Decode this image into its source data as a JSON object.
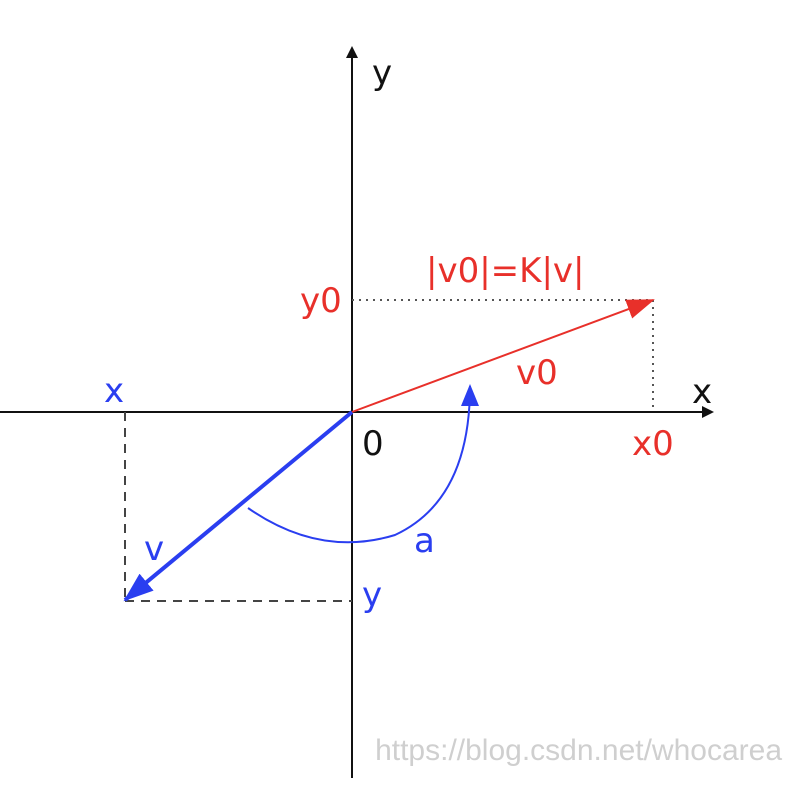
{
  "diagram": {
    "axis_labels": {
      "x": "x",
      "y": "y"
    },
    "origin_label": "0",
    "red_vector": {
      "name": "v0",
      "magnitude_relation": "|v0|=K|v|",
      "x_label": "x0",
      "y_label": "y0",
      "color": "#e8302a"
    },
    "blue_vector": {
      "name": "v",
      "x_label": "x",
      "y_label": "y",
      "color": "#2a3ef0"
    },
    "angle_label": "a"
  },
  "watermark": "https://blog.csdn.net/whocarea"
}
